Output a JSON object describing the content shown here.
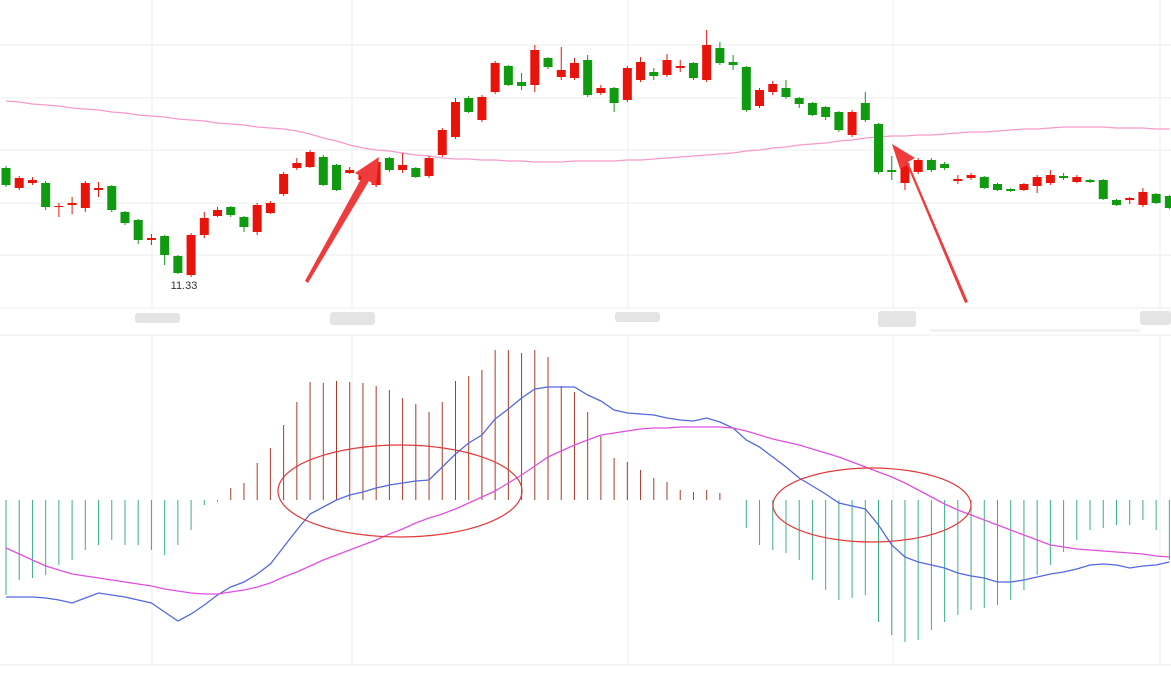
{
  "chart_data": [
    {
      "type": "candlestick",
      "up_color": "#e8140c",
      "down_color": "#109a10",
      "ylim": [
        11.02,
        14.1
      ],
      "open": [
        12.42,
        12.22,
        12.27,
        12.27,
        12.03,
        12.05,
        12.02,
        12.2,
        12.24,
        11.98,
        11.9,
        11.7,
        11.74,
        11.54,
        11.35,
        11.75,
        11.94,
        12.03,
        11.93,
        11.78,
        11.97,
        12.16,
        12.42,
        12.43,
        12.53,
        12.45,
        12.37,
        12.3,
        12.25,
        12.52,
        12.4,
        12.42,
        12.34,
        12.55,
        12.73,
        13.12,
        12.9,
        13.18,
        13.44,
        13.28,
        13.25,
        13.52,
        13.33,
        13.32,
        13.5,
        13.17,
        13.22,
        13.1,
        13.3,
        13.38,
        13.35,
        13.42,
        13.47,
        13.3,
        13.62,
        13.48,
        13.43,
        13.04,
        13.18,
        13.22,
        13.12,
        13.07,
        13.03,
        12.98,
        12.75,
        13.07,
        12.86,
        12.4,
        12.27,
        12.38,
        12.5,
        12.46,
        12.29,
        12.32,
        12.33,
        12.26,
        12.21,
        12.2,
        12.24,
        12.27,
        12.34,
        12.28,
        12.3,
        12.3,
        12.1,
        12.1,
        12.05,
        12.16,
        12.14
      ],
      "high": [
        12.44,
        12.34,
        12.33,
        12.29,
        12.07,
        12.13,
        12.29,
        12.28,
        12.25,
        11.99,
        11.91,
        11.76,
        11.75,
        11.55,
        11.77,
        11.98,
        12.03,
        12.04,
        11.94,
        12.07,
        12.09,
        12.38,
        12.52,
        12.6,
        12.55,
        12.46,
        12.43,
        12.42,
        12.5,
        12.53,
        12.57,
        12.43,
        12.54,
        12.82,
        13.12,
        13.14,
        13.15,
        13.49,
        13.45,
        13.37,
        13.65,
        13.53,
        13.63,
        13.52,
        13.55,
        13.25,
        13.23,
        13.44,
        13.53,
        13.42,
        13.56,
        13.5,
        13.48,
        13.8,
        13.68,
        13.55,
        13.44,
        13.22,
        13.29,
        13.3,
        13.13,
        13.08,
        13.04,
        12.99,
        13.0,
        13.18,
        12.87,
        12.54,
        12.5,
        12.52,
        12.52,
        12.48,
        12.35,
        12.37,
        12.34,
        12.27,
        12.22,
        12.27,
        12.35,
        12.4,
        12.37,
        12.35,
        12.31,
        12.31,
        12.11,
        12.13,
        12.22,
        12.17,
        12.15
      ],
      "low": [
        12.23,
        12.2,
        12.25,
        12.0,
        11.93,
        11.96,
        11.98,
        12.13,
        11.98,
        11.85,
        11.66,
        11.65,
        11.45,
        11.36,
        11.33,
        11.72,
        11.93,
        11.93,
        11.78,
        11.75,
        11.96,
        12.14,
        12.4,
        12.42,
        12.24,
        12.19,
        12.36,
        12.25,
        12.23,
        12.38,
        12.37,
        12.32,
        12.32,
        12.53,
        12.71,
        12.97,
        12.88,
        13.16,
        13.24,
        13.2,
        13.18,
        13.41,
        13.3,
        13.3,
        13.13,
        13.15,
        12.98,
        13.08,
        13.28,
        13.3,
        13.33,
        13.38,
        13.3,
        13.28,
        13.45,
        13.4,
        12.98,
        13.02,
        13.15,
        13.11,
        13.02,
        12.94,
        12.9,
        12.78,
        12.73,
        12.88,
        12.36,
        12.3,
        12.2,
        12.36,
        12.38,
        12.4,
        12.26,
        12.3,
        12.21,
        12.19,
        12.18,
        12.19,
        12.17,
        12.25,
        12.3,
        12.27,
        12.27,
        12.1,
        12.04,
        12.06,
        12.03,
        12.06,
        12.01
      ],
      "close": [
        12.25,
        12.32,
        12.3,
        12.03,
        12.04,
        12.07,
        12.27,
        12.22,
        12.0,
        11.87,
        11.7,
        11.72,
        11.55,
        11.37,
        11.75,
        11.92,
        12.0,
        11.95,
        11.83,
        12.05,
        12.07,
        12.36,
        12.47,
        12.58,
        12.25,
        12.2,
        12.4,
        12.38,
        12.48,
        12.4,
        12.45,
        12.33,
        12.52,
        12.8,
        13.08,
        12.98,
        13.13,
        13.47,
        13.25,
        13.24,
        13.6,
        13.43,
        13.4,
        13.47,
        13.15,
        13.22,
        13.07,
        13.42,
        13.48,
        13.34,
        13.5,
        13.44,
        13.32,
        13.65,
        13.47,
        13.45,
        13.0,
        13.2,
        13.26,
        13.13,
        13.06,
        12.95,
        12.93,
        12.8,
        12.98,
        12.9,
        12.38,
        12.38,
        12.47,
        12.5,
        12.4,
        12.42,
        12.31,
        12.35,
        12.22,
        12.2,
        12.19,
        12.26,
        12.33,
        12.35,
        12.32,
        12.33,
        12.28,
        12.11,
        12.05,
        12.12,
        12.18,
        12.07,
        12.02
      ],
      "lines": [
        {
          "color": "#f59ac8",
          "values": [
            13.09,
            13.08,
            13.06,
            13.05,
            13.04,
            13.02,
            13.01,
            13.0,
            12.98,
            12.97,
            12.95,
            12.94,
            12.93,
            12.91,
            12.9,
            12.89,
            12.87,
            12.86,
            12.85,
            12.83,
            12.82,
            12.81,
            12.79,
            12.76,
            12.72,
            12.69,
            12.65,
            12.62,
            12.6,
            12.59,
            12.57,
            12.55,
            12.54,
            12.52,
            12.51,
            12.51,
            12.5,
            12.5,
            12.49,
            12.49,
            12.48,
            12.48,
            12.48,
            12.49,
            12.49,
            12.49,
            12.49,
            12.5,
            12.5,
            12.51,
            12.52,
            12.53,
            12.54,
            12.55,
            12.56,
            12.57,
            12.59,
            12.6,
            12.62,
            12.63,
            12.65,
            12.66,
            12.67,
            12.69,
            12.7,
            12.72,
            12.73,
            12.74,
            12.74,
            12.75,
            12.75,
            12.76,
            12.77,
            12.78,
            12.78,
            12.79,
            12.8,
            12.81,
            12.81,
            12.82,
            12.83,
            12.83,
            12.83,
            12.83,
            12.82,
            12.82,
            12.82,
            12.81,
            12.81
          ]
        }
      ]
    },
    {
      "type": "macd",
      "up_color": "#a83a2c",
      "down_color": "#3aae8c",
      "ylim": [
        -0.165,
        0.165
      ],
      "histogram": [
        -0.095,
        -0.08,
        -0.078,
        -0.075,
        -0.065,
        -0.06,
        -0.05,
        -0.045,
        -0.04,
        -0.045,
        -0.045,
        -0.05,
        -0.055,
        -0.045,
        -0.03,
        -0.005,
        -0.002,
        0.012,
        0.017,
        0.037,
        0.052,
        0.075,
        0.098,
        0.118,
        0.117,
        0.119,
        0.118,
        0.117,
        0.114,
        0.11,
        0.102,
        0.096,
        0.088,
        0.098,
        0.119,
        0.124,
        0.13,
        0.15,
        0.15,
        0.147,
        0.15,
        0.143,
        0.114,
        0.108,
        0.088,
        0.064,
        0.042,
        0.038,
        0.03,
        0.022,
        0.018,
        0.01,
        0.008,
        0.01,
        0.007,
        0,
        -0.028,
        -0.045,
        -0.05,
        -0.053,
        -0.06,
        -0.08,
        -0.09,
        -0.1,
        -0.098,
        -0.095,
        -0.122,
        -0.135,
        -0.142,
        -0.14,
        -0.13,
        -0.122,
        -0.115,
        -0.11,
        -0.108,
        -0.105,
        -0.1,
        -0.09,
        -0.075,
        -0.065,
        -0.052,
        -0.04,
        -0.03,
        -0.028,
        -0.025,
        -0.025,
        -0.02,
        -0.03,
        -0.06
      ],
      "lines": [
        {
          "color": "#5468e0",
          "values": [
            -0.097,
            -0.097,
            -0.097,
            -0.098,
            -0.1,
            -0.103,
            -0.098,
            -0.093,
            -0.095,
            -0.097,
            -0.1,
            -0.103,
            -0.112,
            -0.121,
            -0.114,
            -0.105,
            -0.095,
            -0.087,
            -0.082,
            -0.074,
            -0.064,
            -0.047,
            -0.03,
            -0.014,
            -0.007,
            0,
            0.005,
            0.008,
            0.012,
            0.015,
            0.017,
            0.019,
            0.02,
            0.033,
            0.046,
            0.057,
            0.065,
            0.081,
            0.091,
            0.102,
            0.111,
            0.113,
            0.113,
            0.113,
            0.105,
            0.099,
            0.09,
            0.087,
            0.086,
            0.085,
            0.082,
            0.08,
            0.079,
            0.082,
            0.078,
            0.072,
            0.06,
            0.053,
            0.043,
            0.033,
            0.022,
            0.014,
            0.006,
            -0.003,
            -0.006,
            -0.009,
            -0.025,
            -0.045,
            -0.057,
            -0.062,
            -0.065,
            -0.068,
            -0.073,
            -0.076,
            -0.078,
            -0.082,
            -0.082,
            -0.08,
            -0.077,
            -0.074,
            -0.072,
            -0.069,
            -0.065,
            -0.064,
            -0.065,
            -0.068,
            -0.066,
            -0.065,
            -0.062
          ]
        },
        {
          "color": "#e050e0",
          "values": [
            -0.048,
            -0.054,
            -0.06,
            -0.066,
            -0.07,
            -0.074,
            -0.076,
            -0.078,
            -0.08,
            -0.082,
            -0.084,
            -0.086,
            -0.089,
            -0.091,
            -0.093,
            -0.094,
            -0.094,
            -0.092,
            -0.09,
            -0.087,
            -0.083,
            -0.077,
            -0.072,
            -0.066,
            -0.06,
            -0.055,
            -0.05,
            -0.045,
            -0.04,
            -0.034,
            -0.029,
            -0.023,
            -0.018,
            -0.014,
            -0.009,
            -0.003,
            0.003,
            0.009,
            0.017,
            0.025,
            0.034,
            0.043,
            0.049,
            0.055,
            0.06,
            0.065,
            0.067,
            0.069,
            0.071,
            0.072,
            0.072,
            0.073,
            0.073,
            0.073,
            0.073,
            0.072,
            0.069,
            0.065,
            0.061,
            0.058,
            0.055,
            0.051,
            0.047,
            0.043,
            0.038,
            0.033,
            0.028,
            0.023,
            0.017,
            0.01,
            0.003,
            -0.004,
            -0.01,
            -0.015,
            -0.02,
            -0.025,
            -0.03,
            -0.035,
            -0.04,
            -0.045,
            -0.047,
            -0.049,
            -0.05,
            -0.051,
            -0.052,
            -0.053,
            -0.054,
            -0.056,
            -0.057
          ]
        }
      ]
    }
  ]
}
